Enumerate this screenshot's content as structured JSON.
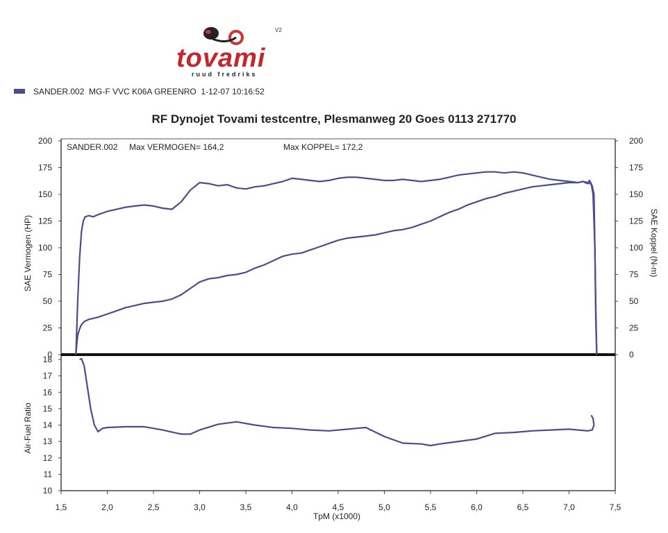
{
  "header": {
    "logo_text": "tovami",
    "logo_subtext": "ruud fredriks",
    "logo_version": "V2"
  },
  "legend": {
    "run_name": "SANDER.002",
    "description": "MG-F VVC K06A GREENRO",
    "timestamp": "1-12-07 10:16:52",
    "color": "#4b4c8c"
  },
  "title": "RF Dynojet Tovami testcentre, Plesmanweg 20 Goes 0113 271770",
  "chart_data": [
    {
      "type": "line",
      "annotations": {
        "run": "SANDER.002",
        "max_power": "Max VERMOGEN= 164,2",
        "max_torque": "Max KOPPEL= 172,2"
      },
      "ylabel_left": "SAE Vermogen (HP)",
      "ylabel_right": "SAE Koppel (N-m)",
      "ylim": [
        0,
        200
      ],
      "xlim": [
        1.5,
        7.5
      ],
      "yticks": [
        "0",
        "25",
        "50",
        "75",
        "100",
        "125",
        "150",
        "175",
        "200"
      ],
      "grid": false,
      "series": [
        {
          "role": "power",
          "color": "#4b4c8c",
          "x": [
            1.66,
            1.67,
            1.68,
            1.7,
            1.72,
            1.75,
            1.8,
            1.9,
            2.0,
            2.1,
            2.2,
            2.3,
            2.4,
            2.5,
            2.6,
            2.7,
            2.8,
            2.9,
            3.0,
            3.1,
            3.2,
            3.3,
            3.4,
            3.5,
            3.6,
            3.7,
            3.8,
            3.9,
            4.0,
            4.1,
            4.2,
            4.3,
            4.4,
            4.5,
            4.6,
            4.7,
            4.8,
            4.9,
            5.0,
            5.1,
            5.2,
            5.3,
            5.4,
            5.5,
            5.6,
            5.7,
            5.8,
            5.9,
            6.0,
            6.1,
            6.2,
            6.3,
            6.4,
            6.5,
            6.6,
            6.7,
            6.8,
            6.9,
            7.0,
            7.1,
            7.15,
            7.2,
            7.23,
            7.25,
            7.27,
            7.28,
            7.29,
            7.3
          ],
          "y": [
            0,
            10,
            18,
            24,
            28,
            31,
            33,
            35,
            38,
            41,
            44,
            46,
            48,
            49,
            50,
            52,
            56,
            62,
            68,
            71,
            72,
            74,
            75,
            77,
            81,
            84,
            88,
            92,
            94,
            95,
            98,
            101,
            104,
            107,
            109,
            110,
            111,
            112,
            114,
            116,
            117,
            119,
            122,
            125,
            129,
            133,
            136,
            140,
            143,
            146,
            148,
            151,
            153,
            155,
            157,
            158,
            159,
            160,
            161,
            161,
            162,
            161,
            160,
            158,
            150,
            100,
            30,
            0
          ]
        },
        {
          "role": "torque",
          "color": "#4b4c8c",
          "x": [
            1.66,
            1.68,
            1.7,
            1.72,
            1.74,
            1.76,
            1.8,
            1.85,
            1.9,
            2.0,
            2.1,
            2.2,
            2.3,
            2.4,
            2.5,
            2.6,
            2.7,
            2.8,
            2.9,
            3.0,
            3.1,
            3.2,
            3.3,
            3.4,
            3.5,
            3.6,
            3.7,
            3.8,
            3.9,
            4.0,
            4.1,
            4.2,
            4.3,
            4.4,
            4.5,
            4.6,
            4.7,
            4.8,
            4.9,
            5.0,
            5.1,
            5.2,
            5.3,
            5.4,
            5.5,
            5.6,
            5.7,
            5.8,
            5.9,
            6.0,
            6.1,
            6.2,
            6.3,
            6.4,
            6.5,
            6.6,
            6.7,
            6.8,
            6.9,
            7.0,
            7.1,
            7.15,
            7.2,
            7.22,
            7.24,
            7.26,
            7.28,
            7.29,
            7.3
          ],
          "y": [
            0,
            50,
            90,
            115,
            125,
            129,
            130,
            129,
            131,
            134,
            136,
            138,
            139,
            140,
            139,
            137,
            136,
            143,
            154,
            161,
            160,
            158,
            159,
            156,
            155,
            157,
            158,
            160,
            162,
            165,
            164,
            163,
            162,
            163,
            165,
            166,
            166,
            165,
            164,
            163,
            163,
            164,
            163,
            162,
            163,
            164,
            166,
            168,
            169,
            170,
            171,
            171,
            170,
            171,
            170,
            168,
            166,
            164,
            163,
            162,
            161,
            162,
            160,
            163,
            160,
            150,
            100,
            40,
            0
          ]
        }
      ]
    },
    {
      "type": "line",
      "ylabel": "Air-Fuel Ratio",
      "xlabel": "TpM (x1000)",
      "ylim": [
        10,
        18
      ],
      "xlim": [
        1.5,
        7.5
      ],
      "yticks": [
        "10",
        "11",
        "12",
        "13",
        "14",
        "15",
        "16",
        "17",
        "18"
      ],
      "xticks": [
        "1,5",
        "2,0",
        "2,5",
        "3,0",
        "3,5",
        "4,0",
        "4,5",
        "5,0",
        "5,5",
        "6,0",
        "6,5",
        "7,0",
        "7,5"
      ],
      "grid": false,
      "series": [
        {
          "role": "afr",
          "color": "#4b4c8c",
          "x": [
            1.7,
            1.72,
            1.75,
            1.78,
            1.82,
            1.86,
            1.9,
            1.95,
            2.0,
            2.2,
            2.4,
            2.6,
            2.8,
            2.9,
            3.0,
            3.2,
            3.4,
            3.6,
            3.8,
            4.0,
            4.2,
            4.4,
            4.6,
            4.8,
            5.0,
            5.2,
            5.4,
            5.5,
            5.6,
            5.8,
            6.0,
            6.2,
            6.4,
            6.6,
            6.8,
            7.0,
            7.1,
            7.2,
            7.25,
            7.27,
            7.26,
            7.24
          ],
          "y": [
            18.0,
            18.05,
            17.6,
            16.5,
            15.0,
            14.0,
            13.6,
            13.8,
            13.85,
            13.9,
            13.9,
            13.7,
            13.45,
            13.45,
            13.7,
            14.05,
            14.2,
            14.0,
            13.85,
            13.8,
            13.7,
            13.65,
            13.75,
            13.85,
            13.3,
            12.9,
            12.85,
            12.75,
            12.85,
            13.0,
            13.15,
            13.5,
            13.55,
            13.65,
            13.7,
            13.75,
            13.7,
            13.65,
            13.7,
            14.0,
            14.4,
            14.6
          ]
        }
      ]
    }
  ]
}
